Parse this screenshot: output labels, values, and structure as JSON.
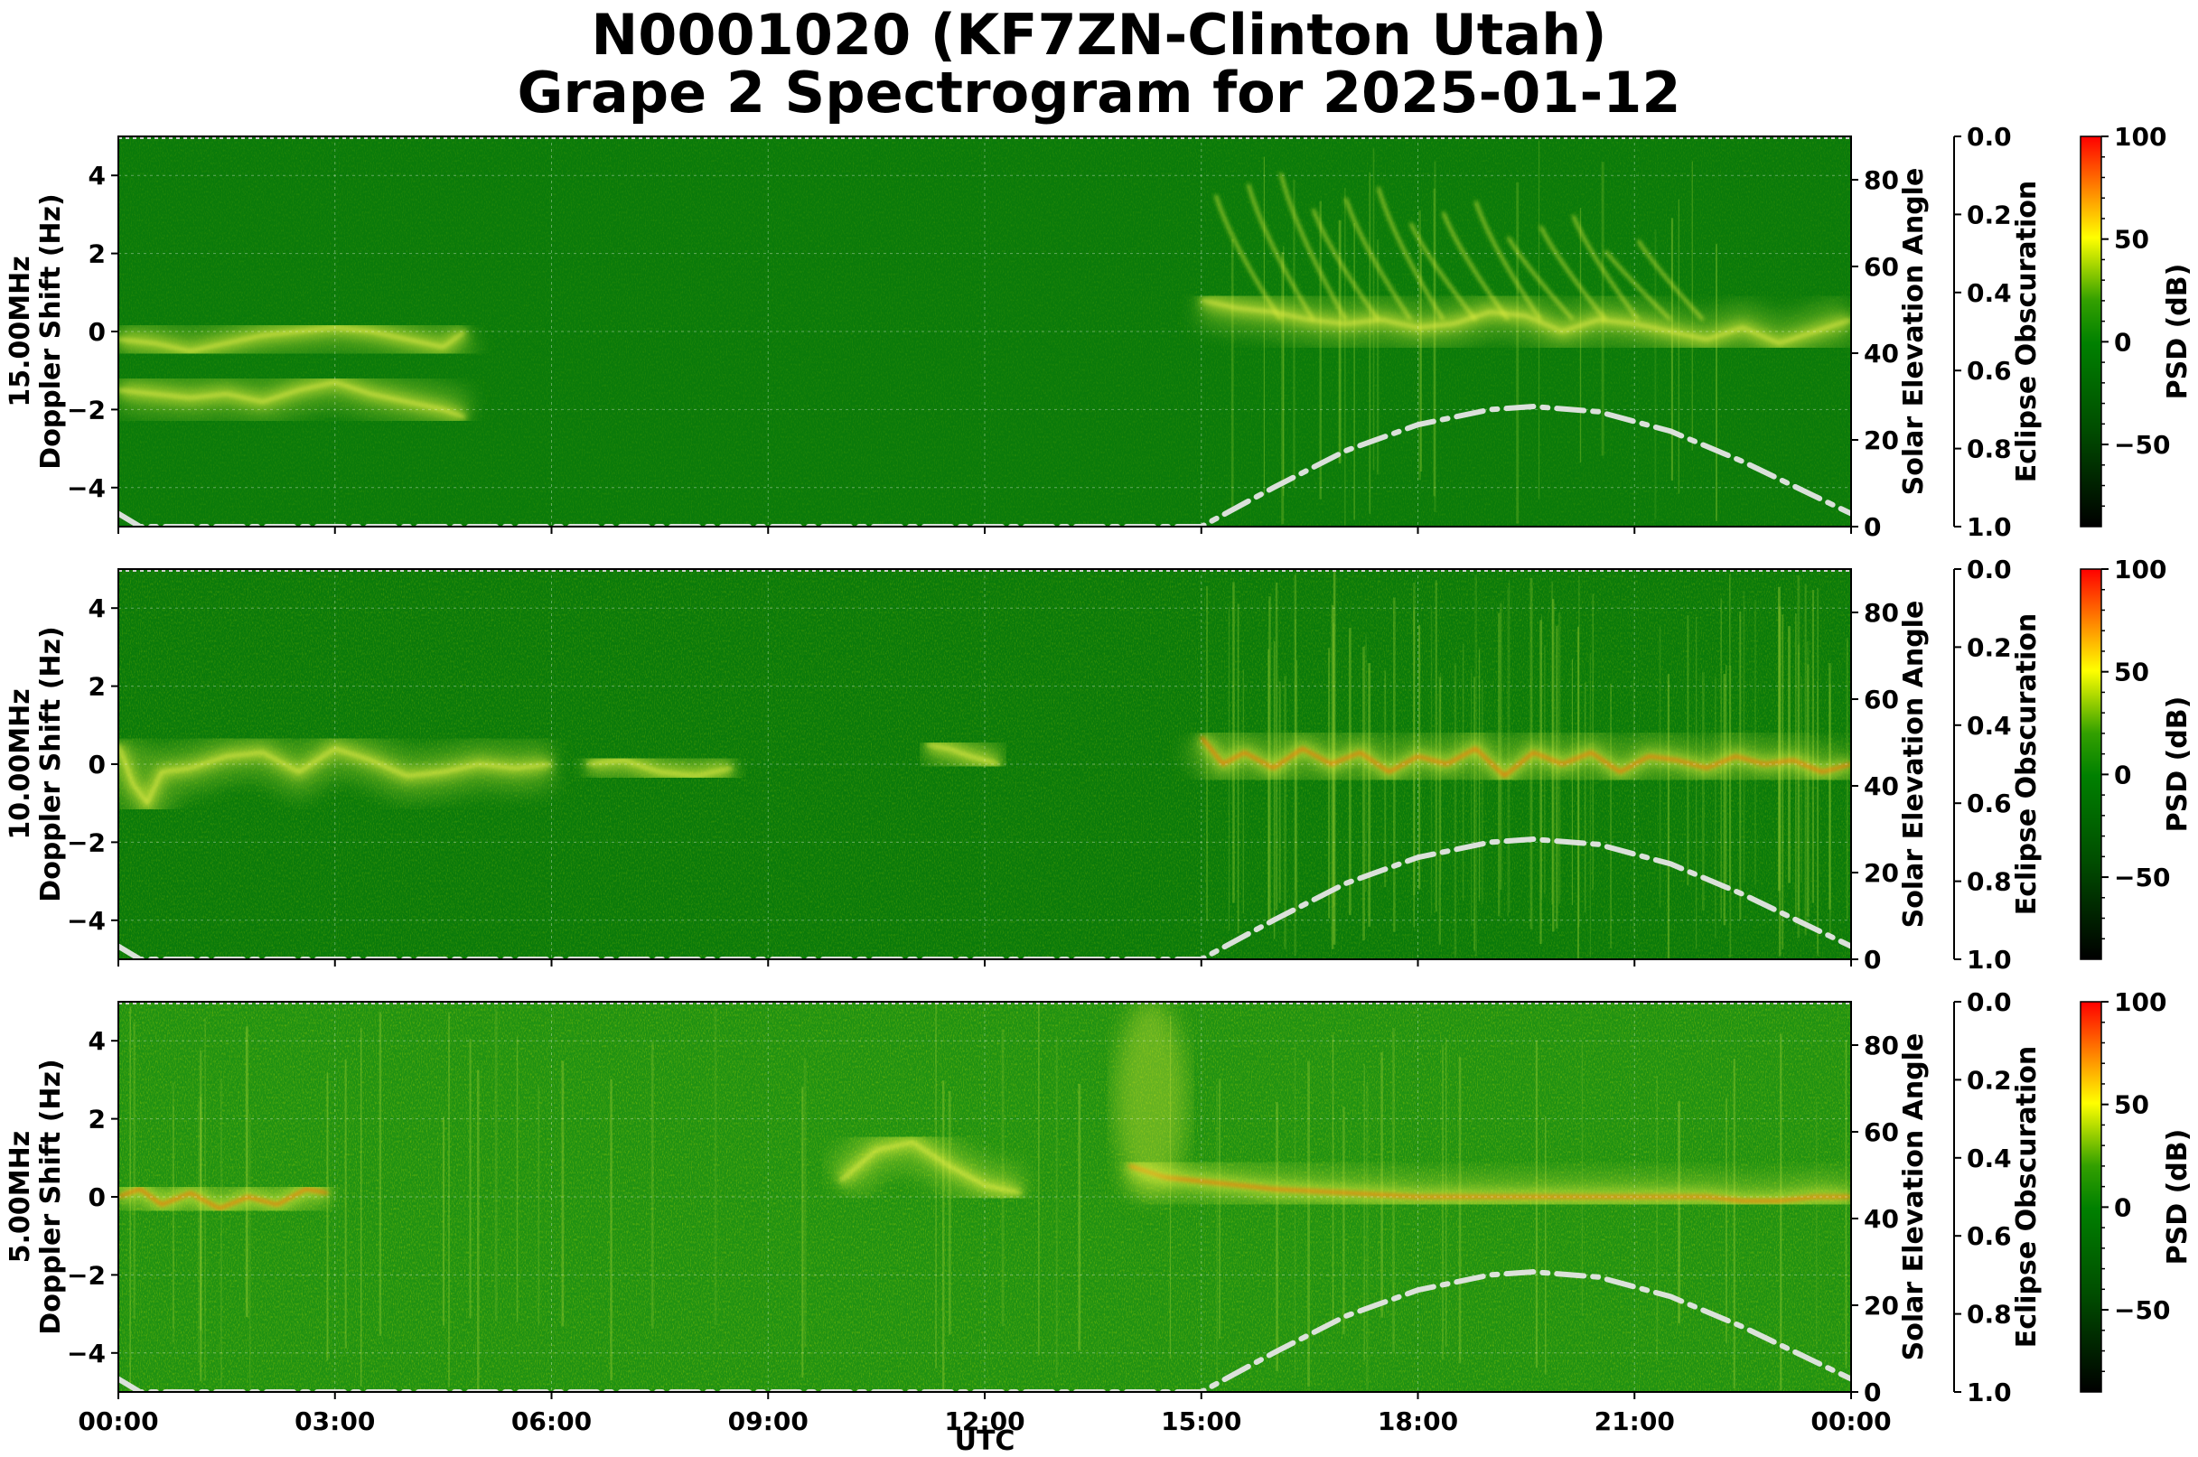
{
  "title_line1": "N0001020 (KF7ZN-Clinton Utah)",
  "title_line2": "Grape 2 Spectrogram for 2025-01-12",
  "colors": {
    "psd_low": "#000000",
    "psd_mid": "#008000",
    "psd_yellow": "#ffff00",
    "psd_high": "#ff0000",
    "solar_curve": "#e6e6e6",
    "grid": "#ffffff"
  },
  "chart_data": {
    "type": "heatmap",
    "xlabel": "UTC",
    "x_ticks": [
      "00:00",
      "03:00",
      "06:00",
      "09:00",
      "12:00",
      "15:00",
      "18:00",
      "21:00",
      "00:00"
    ],
    "x_range_hours": [
      0,
      24
    ],
    "grid": true,
    "panels": [
      {
        "ylabel_line1": "15.00MHz",
        "ylabel_line2": "Doppler Shift (Hz)",
        "ylim": [
          -5,
          5
        ],
        "y_ticks": [
          4,
          2,
          0,
          -2,
          -4
        ],
        "solar_ylabel": "Solar Elevation Angle",
        "solar_ylim": [
          0,
          90
        ],
        "solar_ticks": [
          80,
          60,
          40,
          20,
          0
        ],
        "eclipse_ylabel": "Eclipse Obscuration",
        "eclipse_ylim": [
          1.0,
          0.0
        ],
        "eclipse_ticks": [
          "0.0",
          "0.2",
          "0.4",
          "0.6",
          "0.8",
          "1.0"
        ],
        "colorbar_label": "PSD (dB)",
        "colorbar_ticks": [
          100,
          50,
          0,
          -50
        ],
        "colorbar_range": [
          -90,
          100
        ]
      },
      {
        "ylabel_line1": "10.00MHz",
        "ylabel_line2": "Doppler Shift (Hz)",
        "ylim": [
          -5,
          5
        ],
        "y_ticks": [
          4,
          2,
          0,
          -2,
          -4
        ],
        "solar_ylabel": "Solar Elevation Angle",
        "solar_ylim": [
          0,
          90
        ],
        "solar_ticks": [
          80,
          60,
          40,
          20,
          0
        ],
        "eclipse_ylabel": "Eclipse Obscuration",
        "eclipse_ylim": [
          1.0,
          0.0
        ],
        "eclipse_ticks": [
          "0.0",
          "0.2",
          "0.4",
          "0.6",
          "0.8",
          "1.0"
        ],
        "colorbar_label": "PSD (dB)",
        "colorbar_ticks": [
          100,
          50,
          0,
          -50
        ],
        "colorbar_range": [
          -90,
          100
        ]
      },
      {
        "ylabel_line1": "5.00MHz",
        "ylabel_line2": "Doppler Shift (Hz)",
        "ylim": [
          -5,
          5
        ],
        "y_ticks": [
          4,
          2,
          0,
          -2,
          -4
        ],
        "solar_ylabel": "Solar Elevation Angle",
        "solar_ylim": [
          0,
          90
        ],
        "solar_ticks": [
          80,
          60,
          40,
          20,
          0
        ],
        "eclipse_ylabel": "Eclipse Obscuration",
        "eclipse_ylim": [
          1.0,
          0.0
        ],
        "eclipse_ticks": [
          "0.0",
          "0.2",
          "0.4",
          "0.6",
          "0.8",
          "1.0"
        ],
        "colorbar_label": "PSD (dB)",
        "colorbar_ticks": [
          100,
          50,
          0,
          -50
        ],
        "colorbar_range": [
          -90,
          100
        ]
      }
    ],
    "solar_elevation": {
      "hours": [
        0,
        0.3,
        15.0,
        16.0,
        17.0,
        18.0,
        19.0,
        19.6,
        20.5,
        21.5,
        22.5,
        23.5,
        24.0
      ],
      "degrees": [
        3,
        0,
        0,
        9,
        17.5,
        23.5,
        27,
        27.7,
        26.5,
        22,
        15,
        7,
        3
      ]
    },
    "signal_traces": [
      {
        "hours": [
          0,
          0.5,
          1,
          1.5,
          2,
          2.5,
          3,
          3.5,
          4,
          4.5,
          4.8
        ],
        "hz": [
          -0.2,
          -0.3,
          -0.5,
          -0.3,
          -0.1,
          0,
          0.1,
          0,
          -0.2,
          -0.4,
          0
        ]
      },
      {
        "hours": [
          0,
          0.5,
          1,
          1.5,
          2,
          2.5,
          3,
          3.5,
          4,
          4.5,
          4.8
        ],
        "hz": [
          -1.5,
          -1.6,
          -1.7,
          -1.6,
          -1.8,
          -1.5,
          -1.3,
          -1.6,
          -1.8,
          -2.0,
          -2.2
        ]
      },
      {
        "hours": [
          15.0,
          15.5,
          16.0,
          16.5,
          17.0,
          17.5,
          18.0,
          18.5,
          19.0,
          19.5,
          20.0,
          20.5,
          21.0,
          21.5,
          22.0,
          22.5,
          23.0,
          23.5,
          24.0
        ],
        "hz": [
          0.8,
          0.6,
          0.5,
          0.3,
          0.2,
          0.3,
          0.1,
          0.2,
          0.5,
          0.4,
          0.0,
          0.3,
          0.2,
          0.0,
          -0.2,
          0.1,
          -0.3,
          0.0,
          0.3
        ]
      },
      {
        "hours": [
          0,
          0.2,
          0.4,
          0.6,
          1.0,
          1.5,
          2.0,
          2.5,
          3.0,
          3.5,
          4.0,
          4.5,
          5.0,
          5.5,
          6.0
        ],
        "hz": [
          0.5,
          -0.5,
          -1.0,
          -0.2,
          -0.1,
          0.2,
          0.3,
          -0.2,
          0.4,
          0.1,
          -0.3,
          -0.2,
          0,
          -0.1,
          0
        ]
      },
      {
        "hours": [
          6.5,
          7.0,
          7.5,
          8.0,
          8.5
        ],
        "hz": [
          0,
          0.1,
          -0.2,
          -0.3,
          -0.1
        ]
      },
      {
        "hours": [
          11.2,
          11.5,
          11.8,
          12.2
        ],
        "hz": [
          0.5,
          0.4,
          0.2,
          0.0
        ]
      },
      {
        "hours": [
          15.0,
          15.3,
          15.6,
          16.0,
          16.4,
          16.8,
          17.2,
          17.6,
          18.0,
          18.4,
          18.8,
          19.2,
          19.6,
          20.0,
          20.4,
          20.8,
          21.2,
          21.6,
          22.0,
          22.4,
          22.8,
          23.2,
          23.6,
          24.0
        ],
        "hz": [
          0.7,
          0.0,
          0.3,
          -0.1,
          0.4,
          0.0,
          0.3,
          -0.2,
          0.2,
          0.0,
          0.4,
          -0.3,
          0.3,
          0.0,
          0.3,
          -0.2,
          0.2,
          0.1,
          -0.1,
          0.2,
          0.0,
          0.1,
          -0.2,
          0.0
        ]
      },
      {
        "hours": [
          0,
          0.3,
          0.6,
          1.0,
          1.4,
          1.8,
          2.2,
          2.6,
          2.9
        ],
        "hz": [
          0,
          0.2,
          -0.2,
          0.1,
          -0.3,
          0.0,
          -0.2,
          0.2,
          0.1
        ]
      },
      {
        "hours": [
          14.0,
          14.5,
          15.0,
          15.5,
          16.0,
          17.0,
          18.0,
          19.0,
          20.0,
          21.0,
          22.0,
          22.5,
          23.0,
          23.5,
          24.0
        ],
        "hz": [
          0.8,
          0.5,
          0.4,
          0.3,
          0.2,
          0.1,
          0.0,
          0.0,
          0.0,
          0.0,
          0.0,
          -0.1,
          -0.1,
          0.0,
          0.0
        ]
      },
      {
        "hours": [
          10.0,
          10.5,
          11.0,
          11.5,
          12.0,
          12.5
        ],
        "hz": [
          0.4,
          1.2,
          1.4,
          0.8,
          0.3,
          0.1
        ]
      }
    ]
  }
}
